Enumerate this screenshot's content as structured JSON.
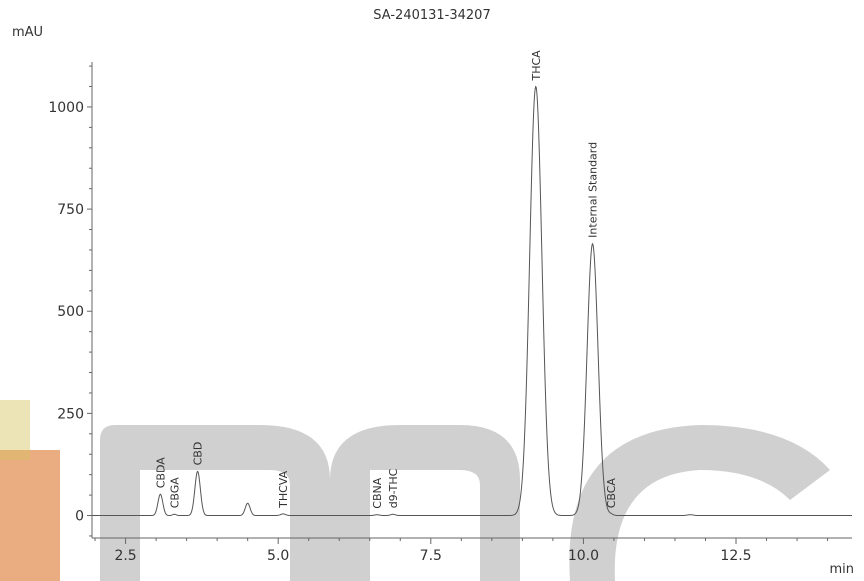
{
  "chart_data": {
    "type": "line",
    "title": "SA-240131-34207",
    "ylabel": "mAU",
    "xlabel": "min",
    "xlim": [
      1.95,
      14.4
    ],
    "ylim": [
      -55,
      1110
    ],
    "xticks": [
      2.5,
      5.0,
      7.5,
      10.0,
      12.5
    ],
    "xtick_labels": [
      "2.5",
      "5.0",
      "7.5",
      "10.0",
      "12.5"
    ],
    "yticks": [
      0,
      250,
      500,
      750,
      1000
    ],
    "ytick_labels": [
      "0",
      "250",
      "500",
      "750",
      "1000"
    ],
    "grid": false,
    "baseline": 0,
    "series": [
      {
        "color": "#555555",
        "peaks": [
          {
            "label": "CBDA",
            "rt": 3.07,
            "height": 52,
            "width": 0.04
          },
          {
            "label": "CBGA",
            "rt": 3.3,
            "height": 3,
            "width": 0.03
          },
          {
            "label": "CBD",
            "rt": 3.68,
            "height": 108,
            "width": 0.045
          },
          {
            "label": "",
            "rt": 4.5,
            "height": 30,
            "width": 0.04
          },
          {
            "label": "THCVA",
            "rt": 5.08,
            "height": 4,
            "width": 0.04
          },
          {
            "label": "CBNA",
            "rt": 6.62,
            "height": 2,
            "width": 0.04
          },
          {
            "label": "d9-THC",
            "rt": 6.88,
            "height": 3,
            "width": 0.04
          },
          {
            "label": "THCA",
            "rt": 9.22,
            "height": 1050,
            "width": 0.1
          },
          {
            "label": "Internal Standard",
            "rt": 10.15,
            "height": 665,
            "width": 0.09
          },
          {
            "label": "CBCA",
            "rt": 10.45,
            "height": 3,
            "width": 0.04
          },
          {
            "label": "",
            "rt": 11.75,
            "height": 2,
            "width": 0.05
          }
        ]
      }
    ]
  },
  "watermark": {
    "colors": [
      "#c8c8c8",
      "#d96a1c",
      "#d4c060"
    ]
  }
}
